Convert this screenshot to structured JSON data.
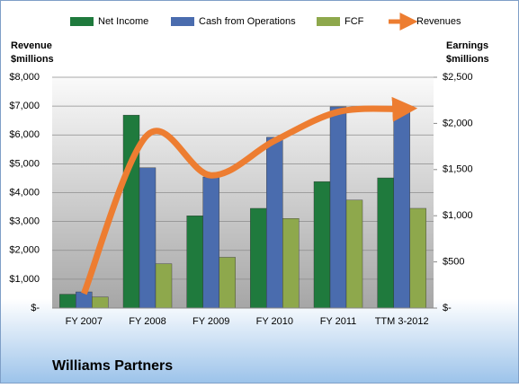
{
  "chart_data": {
    "type": "bar",
    "title": "Williams Partners",
    "ylabel": [
      "Revenue",
      "$millions"
    ],
    "y2label": [
      "Earnings",
      "$millions"
    ],
    "categories": [
      "FY 2007",
      "FY 2008",
      "FY 2009",
      "FY 2010",
      "FY 2011",
      "TTM 3-2012"
    ],
    "series": [
      {
        "name": "Net Income",
        "type": "bar",
        "axis": "y2",
        "color": "#1f7a3d",
        "values": [
          150,
          2090,
          1000,
          1080,
          1370,
          1410
        ]
      },
      {
        "name": "Cash from Operations",
        "type": "bar",
        "axis": "y2",
        "color": "#4a6cae",
        "values": [
          175,
          1520,
          1420,
          1850,
          2180,
          2180
        ]
      },
      {
        "name": "FCF",
        "type": "bar",
        "axis": "y2",
        "color": "#8ea84c",
        "values": [
          120,
          480,
          550,
          970,
          1170,
          1080
        ]
      },
      {
        "name": "Revenues",
        "type": "line",
        "axis": "y",
        "color": "#ed7d31",
        "values": [
          500,
          6000,
          4600,
          5800,
          6800,
          6900
        ]
      }
    ],
    "ylim": [
      0,
      8000
    ],
    "yticks": [
      {
        "value": 0,
        "label": "$-"
      },
      {
        "value": 1000,
        "label": "$1,000"
      },
      {
        "value": 2000,
        "label": "$2,000"
      },
      {
        "value": 3000,
        "label": "$3,000"
      },
      {
        "value": 4000,
        "label": "$4,000"
      },
      {
        "value": 5000,
        "label": "$5,000"
      },
      {
        "value": 6000,
        "label": "$6,000"
      },
      {
        "value": 7000,
        "label": "$7,000"
      },
      {
        "value": 8000,
        "label": "$8,000"
      }
    ],
    "y2lim": [
      0,
      2500
    ],
    "y2ticks": [
      {
        "value": 0,
        "label": "$-"
      },
      {
        "value": 500,
        "label": "$500"
      },
      {
        "value": 1000,
        "label": "$1,000"
      },
      {
        "value": 1500,
        "label": "$1,500"
      },
      {
        "value": 2000,
        "label": "$2,000"
      },
      {
        "value": 2500,
        "label": "$2,500"
      }
    ],
    "grid": true,
    "legend": "top"
  }
}
